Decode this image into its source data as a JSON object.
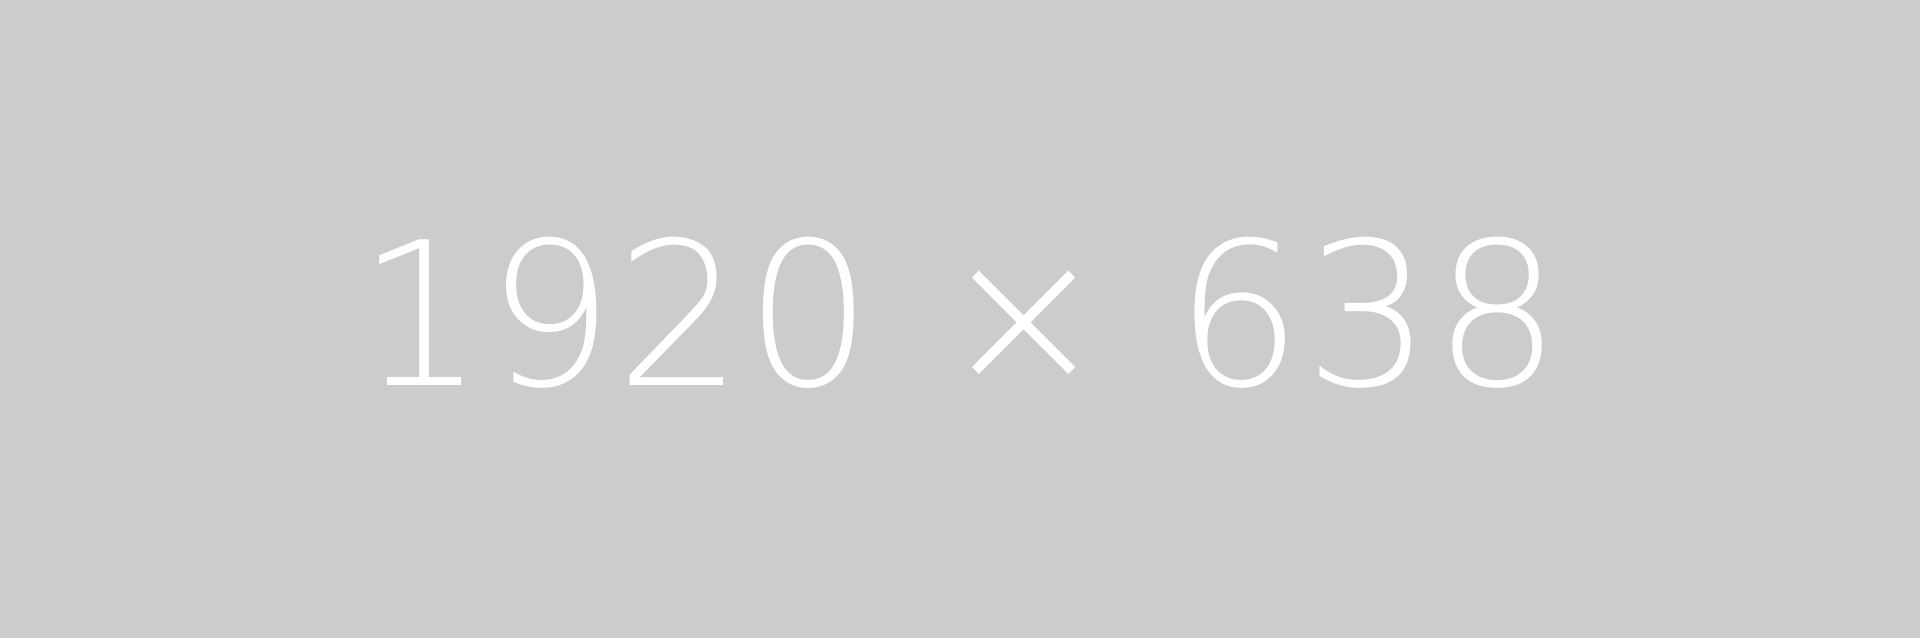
{
  "placeholder": {
    "label": "1920 × 638",
    "background_color": "#cccccc",
    "text_color": "#ffffff"
  }
}
